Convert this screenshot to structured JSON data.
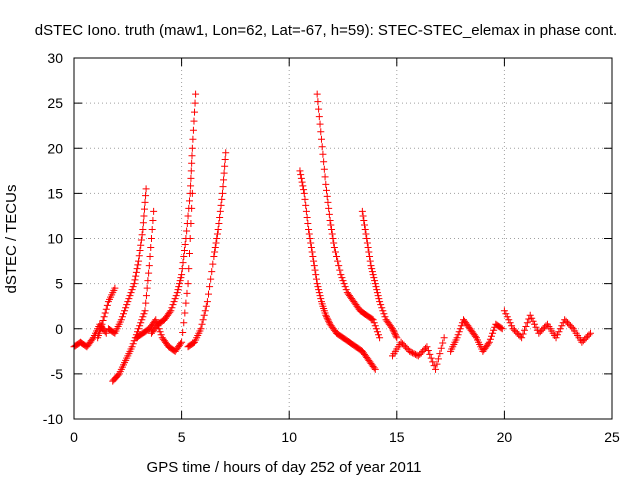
{
  "chart_data": {
    "type": "scatter",
    "title": "dSTEC Iono. truth (maw1, Lon=62, Lat=-67, h=59): STEC-STEC_elemax in phase cont.",
    "xlabel": "GPS time / hours of day 252 of year 2011",
    "ylabel": "dSTEC  / TECUs",
    "xlim": [
      0,
      25
    ],
    "ylim": [
      -10,
      30
    ],
    "xticks": [
      0,
      5,
      10,
      15,
      20,
      25
    ],
    "yticks": [
      -10,
      -5,
      0,
      5,
      10,
      15,
      20,
      25,
      30
    ],
    "grid": true,
    "marker": "+",
    "series": [
      {
        "color": "#ff0000",
        "arcs": [
          {
            "x": [
              0.0,
              0.3,
              0.6,
              0.9,
              1.2,
              1.5
            ],
            "y": [
              -2.0,
              -1.5,
              -2.0,
              -1.0,
              0.5,
              -0.5
            ]
          },
          {
            "x": [
              1.1,
              1.3,
              1.6,
              1.9
            ],
            "y": [
              -1.0,
              0.5,
              3.0,
              4.5
            ]
          },
          {
            "x": [
              1.6,
              1.9,
              2.2,
              2.5,
              2.8,
              3.0,
              3.2,
              3.35
            ],
            "y": [
              0.0,
              -0.5,
              1.0,
              3.0,
              5.0,
              7.5,
              11.0,
              15.5
            ]
          },
          {
            "x": [
              1.8,
              2.1,
              2.4,
              2.7,
              3.0,
              3.3,
              3.5,
              3.7
            ],
            "y": [
              -5.8,
              -5.0,
              -3.5,
              -2.0,
              0.0,
              2.0,
              7.0,
              13.0
            ]
          },
          {
            "x": [
              2.9,
              3.2,
              3.5,
              3.8,
              4.1,
              4.4,
              4.7,
              5.0,
              5.3,
              5.5
            ],
            "y": [
              -1.0,
              -0.5,
              0.0,
              1.0,
              -1.0,
              -2.0,
              -2.5,
              -1.5,
              5.0,
              15.0
            ]
          },
          {
            "x": [
              3.6,
              3.9,
              4.2,
              4.5,
              4.8,
              5.0,
              5.2,
              5.4,
              5.5,
              5.65
            ],
            "y": [
              -0.5,
              0.5,
              1.0,
              2.0,
              4.0,
              6.0,
              10.0,
              15.0,
              20.0,
              26.0
            ]
          },
          {
            "x": [
              5.3,
              5.6,
              5.9,
              6.2,
              6.5,
              6.7,
              6.9,
              7.05
            ],
            "y": [
              -2.0,
              -1.5,
              0.0,
              3.0,
              8.0,
              11.0,
              15.0,
              19.5
            ]
          },
          {
            "x": [
              10.5,
              10.7,
              10.9,
              11.1,
              11.3,
              11.5,
              11.7,
              11.9,
              12.2,
              12.5,
              12.8,
              13.1,
              13.4,
              13.7,
              14.0
            ],
            "y": [
              17.5,
              15.0,
              11.0,
              8.0,
              5.0,
              3.0,
              1.5,
              0.5,
              -0.5,
              -1.0,
              -1.5,
              -2.0,
              -2.5,
              -3.5,
              -4.5
            ]
          },
          {
            "x": [
              11.3,
              11.5,
              11.7,
              11.9,
              12.1,
              12.4,
              12.7,
              13.0,
              13.3,
              13.6,
              13.9,
              14.2
            ],
            "y": [
              26.0,
              21.0,
              16.0,
              12.0,
              9.0,
              6.0,
              4.0,
              3.0,
              2.0,
              1.5,
              1.0,
              -1.0
            ]
          },
          {
            "x": [
              13.4,
              13.6,
              13.8,
              14.0,
              14.2,
              14.5,
              14.8,
              15.0
            ],
            "y": [
              13.0,
              10.0,
              7.0,
              5.0,
              3.0,
              1.0,
              0.0,
              -1.0
            ]
          },
          {
            "x": [
              14.8,
              15.2,
              15.6,
              16.0,
              16.4,
              16.8,
              17.2
            ],
            "y": [
              -3.0,
              -1.5,
              -2.5,
              -3.0,
              -2.0,
              -4.5,
              -1.0
            ]
          },
          {
            "x": [
              17.5,
              17.8,
              18.1,
              18.4,
              18.7,
              19.0,
              19.3,
              19.6,
              19.9
            ],
            "y": [
              -2.5,
              -1.0,
              1.0,
              0.0,
              -1.0,
              -2.5,
              -1.5,
              0.5,
              0.0
            ]
          },
          {
            "x": [
              20.0,
              20.4,
              20.8,
              21.2,
              21.6,
              22.0,
              22.4,
              22.8,
              23.2,
              23.6,
              24.0
            ],
            "y": [
              2.0,
              0.0,
              -1.0,
              1.5,
              -0.5,
              0.5,
              -1.0,
              1.0,
              0.0,
              -1.5,
              -0.5
            ]
          }
        ]
      }
    ]
  }
}
